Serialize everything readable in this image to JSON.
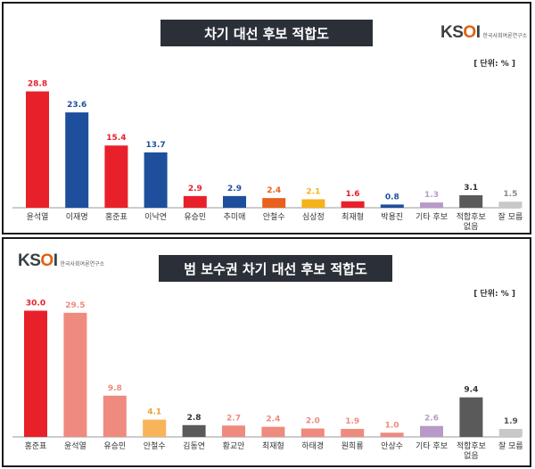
{
  "chart_data": [
    {
      "type": "bar",
      "title": "차기 대선 후보 적합도",
      "unit_label": "[ 단위: % ]",
      "logo_text": "KSOI",
      "logo_sub": "한국사회여론연구소",
      "categories": [
        "윤석열",
        "이재명",
        "홍준표",
        "이낙연",
        "유승민",
        "추미애",
        "안철수",
        "심상정",
        "최재형",
        "박용진",
        "기타 후보",
        "적합후보|없음",
        "잘 모름"
      ],
      "values": [
        28.8,
        23.6,
        15.4,
        13.7,
        2.9,
        2.9,
        2.4,
        2.1,
        1.6,
        0.8,
        1.3,
        3.1,
        1.5
      ],
      "colors": [
        "#e8202a",
        "#1d4f9c",
        "#e8202a",
        "#1d4f9c",
        "#e8202a",
        "#1d4f9c",
        "#e8601c",
        "#f5b31b",
        "#e8202a",
        "#1d4f9c",
        "#b79ac8",
        "#5a5a5a",
        "#c8c8c8"
      ],
      "label_colors": [
        "#e8202a",
        "#1d4f9c",
        "#e8202a",
        "#1d4f9c",
        "#e8202a",
        "#1d4f9c",
        "#e8601c",
        "#f5b31b",
        "#e8202a",
        "#1d4f9c",
        "#b79ac8",
        "#333333",
        "#888888"
      ],
      "ylim": [
        0,
        32
      ]
    },
    {
      "type": "bar",
      "title": "범 보수권 차기 대선 후보 적합도",
      "unit_label": "[ 단위: % ]",
      "logo_text": "KSOI",
      "logo_sub": "한국사회여론연구소",
      "categories": [
        "홍준표",
        "윤석열",
        "유승민",
        "안철수",
        "김동연",
        "황교안",
        "최재형",
        "하태경",
        "원희룡",
        "안상수",
        "기타 후보",
        "적합후보|없음",
        "잘 모름"
      ],
      "values": [
        30.0,
        29.5,
        9.8,
        4.1,
        2.8,
        2.7,
        2.4,
        2.0,
        1.9,
        1.0,
        2.6,
        9.4,
        1.9
      ],
      "colors": [
        "#e8202a",
        "#ef8a7e",
        "#ef8a7e",
        "#f7b45a",
        "#5a5a5a",
        "#ef8a7e",
        "#ef8a7e",
        "#ef8a7e",
        "#ef8a7e",
        "#ef8a7e",
        "#b79ac8",
        "#5a5a5a",
        "#c8c8c8"
      ],
      "label_colors": [
        "#e8202a",
        "#ef8a7e",
        "#ef8a7e",
        "#f0a030",
        "#333333",
        "#ef8a7e",
        "#ef8a7e",
        "#ef8a7e",
        "#ef8a7e",
        "#ef8a7e",
        "#b79ac8",
        "#333333",
        "#555555"
      ],
      "ylim": [
        0,
        32
      ]
    }
  ]
}
